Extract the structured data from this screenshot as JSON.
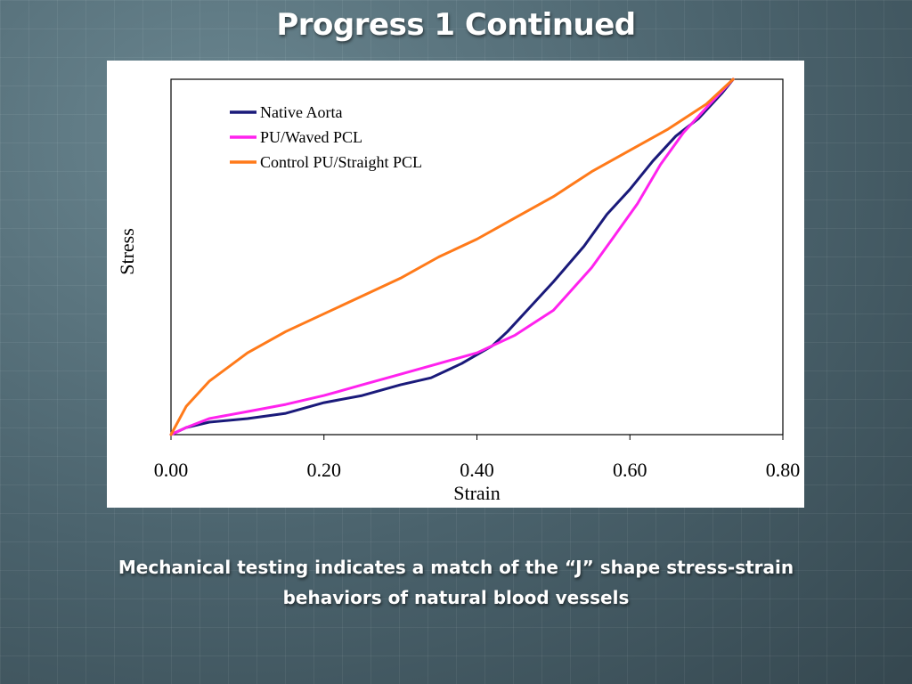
{
  "slide": {
    "title": "Progress 1 Continued",
    "caption_line1": "Mechanical testing indicates a match of the “J” shape stress-strain",
    "caption_line2": "behaviors of natural blood vessels"
  },
  "chart_data": {
    "type": "line",
    "xlabel": "Strain",
    "ylabel": "Stress",
    "xlim": [
      0,
      0.8
    ],
    "ylim": [
      0,
      1
    ],
    "y_ticks_shown": false,
    "x_tick_labels": [
      "0.00",
      "0.20",
      "0.40",
      "0.60",
      "0.80"
    ],
    "grid": false,
    "legend_position": "top-left",
    "series": [
      {
        "name": "Native Aorta",
        "color": "#1a1a7a",
        "x": [
          0,
          0.02,
          0.05,
          0.1,
          0.15,
          0.2,
          0.25,
          0.3,
          0.34,
          0.38,
          0.42,
          0.44,
          0.47,
          0.5,
          0.54,
          0.57,
          0.6,
          0.63,
          0.66,
          0.69,
          0.72,
          0.735
        ],
        "y": [
          0,
          0.02,
          0.035,
          0.045,
          0.06,
          0.09,
          0.11,
          0.14,
          0.16,
          0.2,
          0.25,
          0.29,
          0.36,
          0.43,
          0.53,
          0.62,
          0.69,
          0.77,
          0.84,
          0.89,
          0.96,
          1.0
        ]
      },
      {
        "name": "PU/Waved PCL",
        "color": "#ff22ee",
        "x": [
          0,
          0.02,
          0.05,
          0.1,
          0.15,
          0.2,
          0.25,
          0.3,
          0.35,
          0.4,
          0.45,
          0.5,
          0.55,
          0.58,
          0.61,
          0.64,
          0.67,
          0.7,
          0.735
        ],
        "y": [
          0,
          0.02,
          0.045,
          0.065,
          0.085,
          0.11,
          0.14,
          0.17,
          0.2,
          0.23,
          0.28,
          0.35,
          0.47,
          0.56,
          0.65,
          0.76,
          0.85,
          0.92,
          1.0
        ]
      },
      {
        "name": "Control PU/Straight PCL",
        "color": "#ff7a1a",
        "x": [
          0,
          0.02,
          0.05,
          0.1,
          0.15,
          0.2,
          0.25,
          0.3,
          0.35,
          0.4,
          0.45,
          0.5,
          0.55,
          0.6,
          0.65,
          0.7,
          0.735
        ],
        "y": [
          0,
          0.08,
          0.15,
          0.23,
          0.29,
          0.34,
          0.39,
          0.44,
          0.5,
          0.55,
          0.61,
          0.67,
          0.74,
          0.8,
          0.86,
          0.93,
          1.0
        ]
      }
    ]
  }
}
